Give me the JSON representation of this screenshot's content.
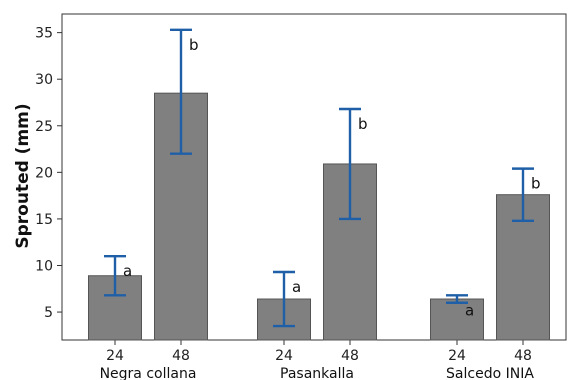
{
  "chart_data": {
    "type": "bar",
    "ylabel": "Sprouted (mm)",
    "xlabel": "",
    "title": "",
    "ylim": [
      2,
      37
    ],
    "yticks": [
      5,
      10,
      15,
      20,
      25,
      30,
      35
    ],
    "grid": false,
    "colors": {
      "bar": "#808080",
      "bar_edge": "#555555",
      "error": "#1f5fa8"
    },
    "groups": [
      {
        "name": "Negra collana",
        "bars": [
          {
            "x": "24",
            "value": 8.9,
            "err_low": 6.8,
            "err_high": 11.0,
            "letter": "a"
          },
          {
            "x": "48",
            "value": 28.5,
            "err_low": 22.0,
            "err_high": 35.3,
            "letter": "b"
          }
        ]
      },
      {
        "name": "Pasankalla",
        "bars": [
          {
            "x": "24",
            "value": 6.4,
            "err_low": 3.5,
            "err_high": 9.3,
            "letter": "a"
          },
          {
            "x": "48",
            "value": 20.9,
            "err_low": 15.0,
            "err_high": 26.8,
            "letter": "b"
          }
        ]
      },
      {
        "name": "Salcedo INIA",
        "bars": [
          {
            "x": "24",
            "value": 6.4,
            "err_low": 6.0,
            "err_high": 6.8,
            "letter": "a"
          },
          {
            "x": "48",
            "value": 17.6,
            "err_low": 14.8,
            "err_high": 20.4,
            "letter": "b"
          }
        ]
      }
    ]
  }
}
